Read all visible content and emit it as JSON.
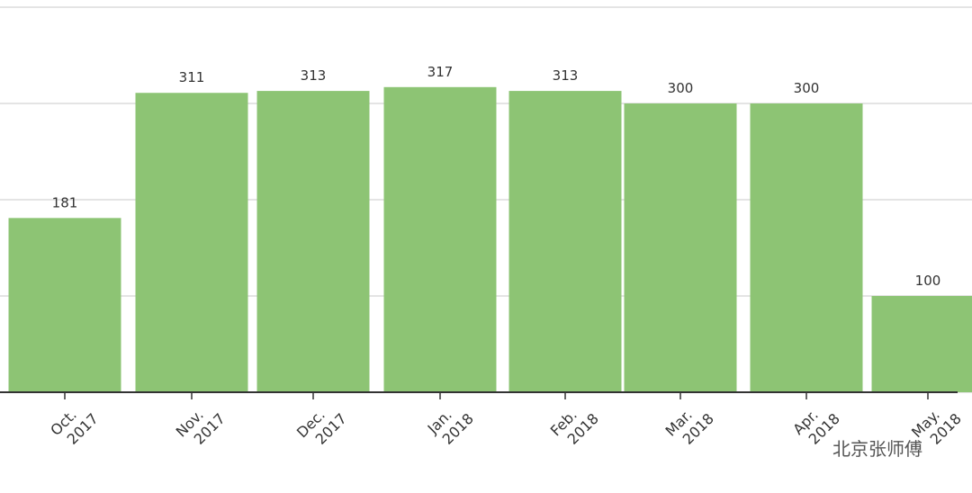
{
  "chart_data": {
    "type": "bar",
    "categories": [
      "Oct. 2017",
      "Nov. 2017",
      "Dec. 2017",
      "Jan. 2018",
      "Feb. 2018",
      "Mar. 2018",
      "Apr. 2018",
      "May. 2018"
    ],
    "values": [
      181,
      311,
      313,
      317,
      313,
      300,
      300,
      100
    ],
    "color": "#8dc474",
    "ylim": [
      0,
      400
    ],
    "yticks": [
      0,
      100,
      200,
      300,
      400
    ],
    "grid": true,
    "watermark": "北京张师傅"
  }
}
